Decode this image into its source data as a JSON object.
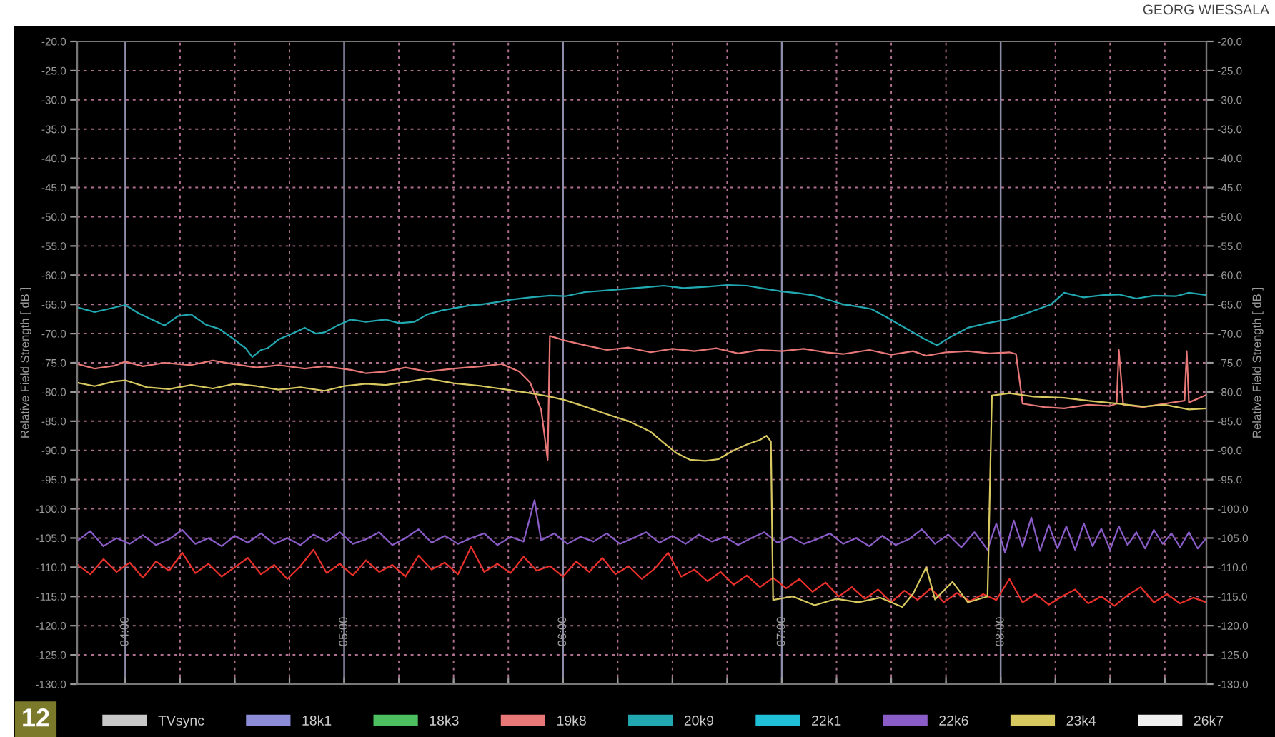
{
  "chart_data": {
    "type": "line",
    "ylabel": "Relative Field Strength [ dB ]",
    "y2label": "Relative Field Strength [ dB ]",
    "annotations": [
      "GEORG WIESSALA",
      "12"
    ],
    "xlim": [
      3.78,
      8.94
    ],
    "xticks": [
      {
        "value": 4,
        "label": "04:00"
      },
      {
        "value": 4.25,
        "label": null
      },
      {
        "value": 4.5,
        "label": null
      },
      {
        "value": 4.75,
        "label": null
      },
      {
        "value": 5,
        "label": "05:00"
      },
      {
        "value": 5.25,
        "label": null
      },
      {
        "value": 5.5,
        "label": null
      },
      {
        "value": 5.75,
        "label": null
      },
      {
        "value": 6,
        "label": "06:00"
      },
      {
        "value": 6.25,
        "label": null
      },
      {
        "value": 6.5,
        "label": null
      },
      {
        "value": 6.75,
        "label": null
      },
      {
        "value": 7,
        "label": "07:00"
      },
      {
        "value": 7.25,
        "label": null
      },
      {
        "value": 7.5,
        "label": null
      },
      {
        "value": 7.75,
        "label": null
      },
      {
        "value": 8,
        "label": "08:00"
      },
      {
        "value": 8.25,
        "label": null
      },
      {
        "value": 8.5,
        "label": null
      },
      {
        "value": 8.75,
        "label": null
      }
    ],
    "ylim": [
      -130,
      -20
    ],
    "yticks": [
      {
        "value": -20,
        "label": "-20.0"
      },
      {
        "value": -25,
        "label": "-25.0"
      },
      {
        "value": -30,
        "label": "-30.0"
      },
      {
        "value": -35,
        "label": "-35.0"
      },
      {
        "value": -40,
        "label": "-40.0"
      },
      {
        "value": -45,
        "label": "-45.0"
      },
      {
        "value": -50,
        "label": "-50.0"
      },
      {
        "value": -55,
        "label": "-55.0"
      },
      {
        "value": -60,
        "label": "-60.0"
      },
      {
        "value": -65,
        "label": "-65.0"
      },
      {
        "value": -70,
        "label": "-70.0"
      },
      {
        "value": -75,
        "label": "-75.0"
      },
      {
        "value": -80,
        "label": "-80.0"
      },
      {
        "value": -85,
        "label": "-85.0"
      },
      {
        "value": -90,
        "label": "-90.0"
      },
      {
        "value": -95,
        "label": "-95.0"
      },
      {
        "value": -100,
        "label": "-100.0"
      },
      {
        "value": -105,
        "label": "-105.0"
      },
      {
        "value": -110,
        "label": "-110.0"
      },
      {
        "value": -115,
        "label": "-115.0"
      },
      {
        "value": -120,
        "label": "-120.0"
      },
      {
        "value": -125,
        "label": "-125.0"
      },
      {
        "value": -130,
        "label": "-130.0"
      }
    ],
    "y2lim": [
      -130,
      -20
    ],
    "y2ticks": [
      {
        "value": -20,
        "label": "-20.0"
      },
      {
        "value": -25,
        "label": "-25.0"
      },
      {
        "value": -30,
        "label": "-30.0"
      },
      {
        "value": -35,
        "label": "-35.0"
      },
      {
        "value": -40,
        "label": "-40.0"
      },
      {
        "value": -45,
        "label": "-45.0"
      },
      {
        "value": -50,
        "label": "-50.0"
      },
      {
        "value": -55,
        "label": "-55.0"
      },
      {
        "value": -60,
        "label": "-60.0"
      },
      {
        "value": -65,
        "label": "-65.0"
      },
      {
        "value": -70,
        "label": "-70.0"
      },
      {
        "value": -75,
        "label": "-75.0"
      },
      {
        "value": -80,
        "label": "-80.0"
      },
      {
        "value": -85,
        "label": "-85.0"
      },
      {
        "value": -90,
        "label": "-90.0"
      },
      {
        "value": -95,
        "label": "-95.0"
      },
      {
        "value": -100,
        "label": "-100.0"
      },
      {
        "value": -105,
        "label": "-105.0"
      },
      {
        "value": -110,
        "label": "-110.0"
      },
      {
        "value": -115,
        "label": "-115.0"
      },
      {
        "value": -120,
        "label": "-120.0"
      },
      {
        "value": -125,
        "label": "-125.0"
      },
      {
        "value": -130,
        "label": "-130.0"
      }
    ],
    "grid": true,
    "legend": "bottom",
    "marker": "none",
    "line_style": "solid",
    "series": [
      {
        "color": "#e8302a",
        "x": [
          3.78,
          3.84,
          3.9,
          3.96,
          4.02,
          4.08,
          4.14,
          4.2,
          4.26,
          4.32,
          4.38,
          4.44,
          4.5,
          4.56,
          4.62,
          4.68,
          4.74,
          4.8,
          4.86,
          4.92,
          4.98,
          5.04,
          5.1,
          5.16,
          5.22,
          5.28,
          5.34,
          5.4,
          5.46,
          5.52,
          5.58,
          5.64,
          5.7,
          5.76,
          5.82,
          5.88,
          5.94,
          6.0,
          6.06,
          6.12,
          6.18,
          6.24,
          6.3,
          6.36,
          6.42,
          6.48,
          6.54,
          6.6,
          6.66,
          6.72,
          6.78,
          6.84,
          6.9,
          6.96,
          7.02,
          7.08,
          7.14,
          7.2,
          7.26,
          7.32,
          7.38,
          7.44,
          7.5,
          7.56,
          7.62,
          7.68,
          7.74,
          7.8,
          7.86,
          7.92,
          7.98,
          8.04,
          8.1,
          8.16,
          8.22,
          8.28,
          8.34,
          8.4,
          8.46,
          8.52,
          8.58,
          8.64,
          8.7,
          8.76,
          8.82,
          8.88,
          8.94
        ],
        "values": [
          -109.5,
          -111.2,
          -108.6,
          -110.8,
          -109.2,
          -111.8,
          -109.0,
          -110.6,
          -107.5,
          -111.0,
          -109.4,
          -111.6,
          -110.0,
          -108.4,
          -111.2,
          -109.6,
          -112.0,
          -109.8,
          -107.0,
          -111.0,
          -109.4,
          -111.4,
          -108.8,
          -110.8,
          -109.6,
          -111.6,
          -108.0,
          -110.4,
          -109.2,
          -111.2,
          -106.5,
          -110.8,
          -109.4,
          -111.0,
          -108.2,
          -110.6,
          -109.8,
          -111.6,
          -109.0,
          -110.8,
          -108.4,
          -111.2,
          -109.8,
          -112.0,
          -110.2,
          -107.5,
          -111.6,
          -110.4,
          -112.4,
          -110.8,
          -113.0,
          -111.4,
          -113.4,
          -111.8,
          -113.6,
          -112.0,
          -114.2,
          -112.6,
          -115.0,
          -113.4,
          -115.4,
          -113.8,
          -116.0,
          -114.0,
          -115.6,
          -113.6,
          -116.0,
          -114.4,
          -115.8,
          -114.6,
          -115.6,
          -112.0,
          -116.0,
          -114.6,
          -116.4,
          -115.0,
          -113.8,
          -116.2,
          -115.0,
          -116.6,
          -114.8,
          -113.4,
          -116.0,
          -114.6,
          -116.2,
          -115.2,
          -116.0
        ]
      },
      {
        "name": "TVsync",
        "color": "#c8c8c8"
      },
      {
        "name": "18k1",
        "color": "#8c8cd8"
      },
      {
        "name": "18k3",
        "color": "#4cc060"
      },
      {
        "name": "19k8",
        "color": "#e87878",
        "x": [
          3.78,
          3.86,
          3.95,
          4.0,
          4.08,
          4.18,
          4.3,
          4.4,
          4.49,
          4.6,
          4.7,
          4.82,
          4.91,
          5.03,
          5.1,
          5.19,
          5.28,
          5.38,
          5.5,
          5.63,
          5.72,
          5.8,
          5.85,
          5.9,
          5.93,
          5.94,
          6.01,
          6.1,
          6.2,
          6.3,
          6.4,
          6.5,
          6.6,
          6.7,
          6.8,
          6.9,
          7.0,
          7.1,
          7.2,
          7.28,
          7.4,
          7.5,
          7.6,
          7.66,
          7.75,
          7.85,
          7.95,
          8.04,
          8.07,
          8.09,
          8.1,
          8.2,
          8.29,
          8.4,
          8.5,
          8.53,
          8.54,
          8.56,
          8.65,
          8.75,
          8.84,
          8.85,
          8.86,
          8.94
        ],
        "values": [
          -75.2,
          -76.0,
          -75.5,
          -74.8,
          -75.6,
          -75.0,
          -75.4,
          -74.6,
          -75.2,
          -75.8,
          -75.4,
          -76.0,
          -75.6,
          -76.2,
          -76.8,
          -76.5,
          -75.8,
          -76.5,
          -76.0,
          -75.6,
          -75.2,
          -76.5,
          -78.4,
          -83.0,
          -91.6,
          -70.4,
          -71.2,
          -72.0,
          -72.8,
          -72.4,
          -73.2,
          -72.6,
          -73.0,
          -72.5,
          -73.4,
          -72.8,
          -73.0,
          -72.6,
          -73.2,
          -73.5,
          -72.8,
          -73.6,
          -73.0,
          -73.8,
          -73.2,
          -73.0,
          -73.4,
          -73.2,
          -73.5,
          -79.0,
          -82.0,
          -82.6,
          -82.8,
          -82.2,
          -82.4,
          -82.0,
          -72.8,
          -82.2,
          -82.6,
          -82.0,
          -81.5,
          -73.0,
          -81.8,
          -80.5
        ]
      },
      {
        "name": "20k9",
        "color": "#22a8b0",
        "x": [
          3.78,
          3.86,
          3.92,
          4.0,
          4.06,
          4.11,
          4.18,
          4.24,
          4.3,
          4.37,
          4.43,
          4.49,
          4.55,
          4.58,
          4.62,
          4.65,
          4.7,
          4.75,
          4.82,
          4.87,
          4.91,
          4.97,
          5.03,
          5.1,
          5.19,
          5.25,
          5.32,
          5.38,
          5.45,
          5.51,
          5.57,
          5.63,
          5.7,
          5.76,
          5.85,
          5.94,
          6.01,
          6.1,
          6.2,
          6.3,
          6.4,
          6.46,
          6.55,
          6.65,
          6.75,
          6.84,
          6.92,
          7.0,
          7.08,
          7.15,
          7.22,
          7.28,
          7.35,
          7.41,
          7.47,
          7.53,
          7.6,
          7.66,
          7.71,
          7.76,
          7.85,
          7.94,
          8.04,
          8.12,
          8.23,
          8.29,
          8.38,
          8.47,
          8.54,
          8.62,
          8.7,
          8.8,
          8.86,
          8.94
        ],
        "values": [
          -65.5,
          -66.3,
          -65.8,
          -65.1,
          -66.5,
          -67.4,
          -68.6,
          -67.0,
          -66.7,
          -68.5,
          -69.2,
          -70.8,
          -72.5,
          -74.0,
          -72.8,
          -72.5,
          -71.0,
          -70.2,
          -69.0,
          -70.0,
          -69.8,
          -68.6,
          -67.6,
          -68.0,
          -67.6,
          -68.2,
          -68.0,
          -66.7,
          -66.0,
          -65.6,
          -65.2,
          -65.0,
          -64.6,
          -64.2,
          -63.8,
          -63.5,
          -63.6,
          -62.9,
          -62.6,
          -62.3,
          -62.0,
          -61.8,
          -62.2,
          -62.0,
          -61.7,
          -61.8,
          -62.3,
          -62.8,
          -63.1,
          -63.5,
          -64.3,
          -65.0,
          -65.4,
          -65.8,
          -67.0,
          -68.3,
          -69.8,
          -71.1,
          -72.0,
          -70.8,
          -69.0,
          -68.2,
          -67.5,
          -66.5,
          -65.0,
          -63.0,
          -63.8,
          -63.4,
          -63.3,
          -64.0,
          -63.5,
          -63.6,
          -63.0,
          -63.4
        ]
      },
      {
        "name": "22k1",
        "color": "#20c0d8"
      },
      {
        "name": "22k6",
        "color": "#8a5cc8",
        "x": [
          3.78,
          3.84,
          3.9,
          3.96,
          4.02,
          4.08,
          4.14,
          4.2,
          4.26,
          4.32,
          4.38,
          4.44,
          4.5,
          4.56,
          4.62,
          4.68,
          4.74,
          4.8,
          4.86,
          4.92,
          4.98,
          5.04,
          5.1,
          5.16,
          5.22,
          5.28,
          5.34,
          5.4,
          5.46,
          5.52,
          5.58,
          5.64,
          5.7,
          5.76,
          5.82,
          5.87,
          5.9,
          5.96,
          6.02,
          6.08,
          6.14,
          6.2,
          6.26,
          6.32,
          6.38,
          6.44,
          6.5,
          6.56,
          6.62,
          6.68,
          6.74,
          6.8,
          6.86,
          6.92,
          6.98,
          7.04,
          7.1,
          7.16,
          7.22,
          7.28,
          7.34,
          7.4,
          7.46,
          7.52,
          7.58,
          7.64,
          7.7,
          7.76,
          7.82,
          7.88,
          7.94,
          7.98,
          8.02,
          8.06,
          8.1,
          8.14,
          8.18,
          8.22,
          8.26,
          8.3,
          8.34,
          8.38,
          8.42,
          8.46,
          8.5,
          8.54,
          8.58,
          8.62,
          8.66,
          8.7,
          8.74,
          8.78,
          8.82,
          8.86,
          8.9,
          8.94
        ],
        "values": [
          -105.5,
          -103.8,
          -106.4,
          -105.0,
          -106.0,
          -104.5,
          -106.2,
          -105.2,
          -103.6,
          -106.0,
          -105.0,
          -106.4,
          -104.6,
          -105.8,
          -104.2,
          -106.0,
          -105.0,
          -106.2,
          -104.4,
          -105.6,
          -104.0,
          -106.0,
          -105.2,
          -104.0,
          -106.2,
          -105.0,
          -103.5,
          -105.8,
          -104.6,
          -106.0,
          -105.0,
          -104.2,
          -106.2,
          -104.8,
          -105.6,
          -98.5,
          -105.4,
          -104.2,
          -106.0,
          -104.8,
          -105.6,
          -104.2,
          -106.0,
          -105.0,
          -104.0,
          -105.8,
          -104.6,
          -106.0,
          -104.4,
          -105.6,
          -104.8,
          -106.2,
          -105.0,
          -104.0,
          -105.8,
          -104.8,
          -106.0,
          -105.2,
          -104.2,
          -106.0,
          -105.0,
          -106.4,
          -104.6,
          -106.2,
          -105.2,
          -103.5,
          -106.0,
          -104.4,
          -106.6,
          -104.0,
          -107.0,
          -102.5,
          -107.5,
          -102.0,
          -106.5,
          -101.5,
          -107.2,
          -102.8,
          -106.8,
          -103.0,
          -107.0,
          -102.5,
          -106.4,
          -103.4,
          -107.0,
          -103.0,
          -106.2,
          -104.0,
          -106.8,
          -103.6,
          -106.0,
          -104.2,
          -106.6,
          -104.0,
          -106.8,
          -105.0
        ]
      },
      {
        "name": "23k4",
        "color": "#d8c860",
        "x": [
          3.78,
          3.86,
          3.95,
          4.0,
          4.1,
          4.2,
          4.3,
          4.4,
          4.5,
          4.6,
          4.7,
          4.8,
          4.91,
          5.0,
          5.1,
          5.19,
          5.3,
          5.38,
          5.5,
          5.63,
          5.76,
          5.85,
          5.94,
          6.01,
          6.1,
          6.2,
          6.3,
          6.4,
          6.46,
          6.52,
          6.58,
          6.65,
          6.71,
          6.78,
          6.84,
          6.9,
          6.93,
          6.95,
          6.96,
          7.05,
          7.15,
          7.25,
          7.35,
          7.45,
          7.55,
          7.6,
          7.66,
          7.7,
          7.78,
          7.85,
          7.94,
          7.96,
          8.04,
          8.15,
          8.29,
          8.4,
          8.54,
          8.65,
          8.75,
          8.86,
          8.94
        ],
        "values": [
          -78.4,
          -79.0,
          -78.2,
          -78.0,
          -79.2,
          -79.5,
          -78.8,
          -79.4,
          -78.6,
          -79.0,
          -79.6,
          -79.2,
          -79.8,
          -79.0,
          -78.6,
          -78.8,
          -78.2,
          -77.7,
          -78.5,
          -79.0,
          -79.7,
          -80.2,
          -80.8,
          -81.4,
          -82.5,
          -83.8,
          -85.0,
          -86.8,
          -88.7,
          -90.5,
          -91.6,
          -91.8,
          -91.5,
          -90.0,
          -89.0,
          -88.2,
          -87.5,
          -88.5,
          -115.6,
          -115.0,
          -116.5,
          -115.4,
          -116.0,
          -115.2,
          -116.8,
          -114.5,
          -110.0,
          -115.5,
          -112.5,
          -116.0,
          -115.0,
          -80.6,
          -80.2,
          -80.8,
          -81.0,
          -81.5,
          -82.0,
          -82.5,
          -82.2,
          -83.0,
          -82.8
        ]
      },
      {
        "name": "26k7",
        "color": "#f0f0f0"
      }
    ]
  }
}
